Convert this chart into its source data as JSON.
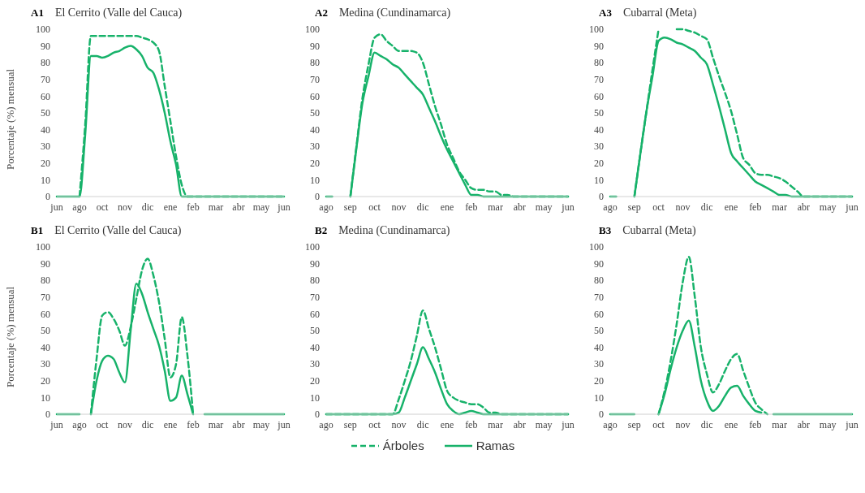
{
  "chart_data": [
    {
      "type": "line",
      "title": "El Cerrito (Valle del Cauca)",
      "annotations": [
        "A1"
      ],
      "ylabel": "Porcentaje (%) mensual",
      "categories": [
        "jun",
        null,
        null,
        null,
        "ago",
        null,
        null,
        null,
        "oct",
        null,
        null,
        null,
        "nov",
        null,
        null,
        null,
        "dic",
        null,
        null,
        null,
        "ene",
        null,
        null,
        null,
        "feb",
        null,
        null,
        null,
        "mar",
        null,
        null,
        null,
        "abr",
        null,
        null,
        null,
        "may",
        null,
        null,
        null,
        "jun"
      ],
      "ylim": [
        0,
        100
      ],
      "yticks": [
        0,
        10,
        20,
        30,
        40,
        50,
        60,
        70,
        80,
        90,
        100
      ],
      "grid": false,
      "legend": false,
      "series": [
        {
          "color": "#17b26a",
          "line_style": "dashed",
          "values": [
            null,
            null,
            null,
            null,
            0,
            43,
            96,
            96,
            96,
            96,
            96,
            96,
            96,
            96,
            96,
            95,
            94,
            92,
            87,
            66,
            45,
            24,
            7,
            0,
            0,
            0,
            0,
            0,
            0,
            0,
            0,
            0,
            0,
            0,
            0,
            0,
            0,
            0,
            0,
            0,
            0
          ]
        },
        {
          "color": "#17b26a",
          "line_style": "solid",
          "values": [
            0,
            0,
            0,
            0,
            0,
            37,
            84,
            84,
            83,
            84,
            86,
            87,
            89,
            90,
            88,
            84,
            77,
            74,
            64,
            50,
            33,
            19,
            0,
            0,
            0,
            0,
            0,
            0,
            0,
            0,
            0,
            0,
            0,
            0,
            0,
            0,
            0,
            0,
            0,
            0,
            0
          ]
        }
      ]
    },
    {
      "type": "line",
      "title": "Medina (Cundinamarca)",
      "annotations": [
        "A2"
      ],
      "categories": [
        "ago",
        null,
        null,
        null,
        "sep",
        null,
        null,
        null,
        "oct",
        null,
        null,
        null,
        "nov",
        null,
        null,
        null,
        "dic",
        null,
        null,
        null,
        "ene",
        null,
        null,
        null,
        "feb",
        null,
        null,
        null,
        "mar",
        null,
        null,
        null,
        "abr",
        null,
        null,
        null,
        "may",
        null,
        null,
        null,
        "jun"
      ],
      "ylim": [
        0,
        100
      ],
      "yticks": [
        0,
        10,
        20,
        30,
        40,
        50,
        60,
        70,
        80,
        90,
        100
      ],
      "grid": false,
      "legend": false,
      "series": [
        {
          "color": "#17b26a",
          "line_style": "dashed",
          "values": [
            null,
            null,
            null,
            null,
            0,
            30,
            59,
            79,
            95,
            97,
            93,
            90,
            87,
            87,
            87,
            86,
            80,
            67,
            54,
            43,
            31,
            23,
            15,
            10,
            5,
            4,
            4,
            3,
            3,
            1,
            1,
            0,
            0,
            0,
            0,
            0,
            0,
            0,
            0,
            0,
            0
          ]
        },
        {
          "color": "#17b26a",
          "line_style": "solid",
          "values": [
            0,
            0,
            null,
            null,
            0,
            29,
            56,
            72,
            86,
            84,
            82,
            79,
            77,
            73,
            69,
            65,
            61,
            53,
            45,
            36,
            28,
            21,
            14,
            7,
            1,
            1,
            0,
            0,
            0,
            0,
            0,
            0,
            0,
            0,
            0,
            0,
            0,
            0,
            0,
            0,
            0
          ]
        }
      ]
    },
    {
      "type": "line",
      "title": "Cubarral  (Meta)",
      "annotations": [
        "A3"
      ],
      "categories": [
        "ago",
        null,
        null,
        null,
        "sep",
        null,
        null,
        null,
        "oct",
        null,
        null,
        null,
        "nov",
        null,
        null,
        null,
        "dic",
        null,
        null,
        null,
        "ene",
        null,
        null,
        null,
        "feb",
        null,
        null,
        null,
        "mar",
        null,
        null,
        null,
        "abr",
        null,
        null,
        null,
        "may",
        null,
        null,
        null,
        "jun"
      ],
      "ylim": [
        0,
        100
      ],
      "yticks": [
        0,
        10,
        20,
        30,
        40,
        50,
        60,
        70,
        80,
        90,
        100
      ],
      "grid": false,
      "legend": false,
      "series": [
        {
          "color": "#17b26a",
          "line_style": "dashed",
          "values": [
            null,
            null,
            null,
            null,
            0,
            26,
            51,
            76,
            100,
            null,
            null,
            100,
            100,
            99,
            98,
            96,
            94,
            83,
            72,
            62,
            51,
            37,
            23,
            19,
            14,
            13,
            13,
            12,
            11,
            9,
            6,
            3,
            0,
            0,
            0,
            0,
            0,
            0,
            0,
            0,
            0
          ]
        },
        {
          "color": "#17b26a",
          "line_style": "solid",
          "values": [
            0,
            0,
            null,
            null,
            0,
            26,
            51,
            72,
            93,
            95,
            94,
            92,
            91,
            89,
            87,
            83,
            79,
            67,
            54,
            40,
            26,
            21,
            17,
            13,
            9,
            7,
            5,
            3,
            1,
            1,
            0,
            0,
            0,
            0,
            0,
            0,
            0,
            0,
            0,
            0,
            0
          ]
        }
      ]
    },
    {
      "type": "line",
      "title": "El Cerrito (Valle del Cauca)",
      "annotations": [
        "B1"
      ],
      "ylabel": "Porcentaje (%) mensual",
      "categories": [
        "jun",
        null,
        null,
        null,
        "ago",
        null,
        null,
        null,
        "oct",
        null,
        null,
        null,
        "nov",
        null,
        null,
        null,
        "dic",
        null,
        null,
        null,
        "ene",
        null,
        null,
        null,
        "feb",
        null,
        null,
        null,
        "mar",
        null,
        null,
        null,
        "abr",
        null,
        null,
        null,
        "may",
        null,
        null,
        null,
        "jun"
      ],
      "ylim": [
        0,
        100
      ],
      "yticks": [
        0,
        10,
        20,
        30,
        40,
        50,
        60,
        70,
        80,
        90,
        100
      ],
      "grid": false,
      "legend": false,
      "series": [
        {
          "color": "#17b26a",
          "line_style": "dashed",
          "values": [
            null,
            null,
            null,
            null,
            null,
            null,
            0,
            33,
            59,
            61,
            57,
            50,
            41,
            52,
            69,
            86,
            93,
            83,
            67,
            45,
            22,
            30,
            58,
            35,
            0,
            null,
            null,
            null,
            null,
            null,
            null,
            null,
            null,
            null,
            null,
            null,
            null,
            null,
            null,
            null,
            null
          ]
        },
        {
          "color": "#17b26a",
          "line_style": "solid",
          "values": [
            0,
            0,
            0,
            0,
            0,
            null,
            0,
            20,
            32,
            35,
            33,
            25,
            19,
            50,
            78,
            72,
            61,
            51,
            41,
            26,
            8,
            10,
            23,
            12,
            0,
            null,
            0,
            0,
            0,
            0,
            0,
            0,
            0,
            0,
            0,
            0,
            0,
            0,
            0,
            0,
            0
          ]
        }
      ]
    },
    {
      "type": "line",
      "title": "Medina (Cundinamarca)",
      "annotations": [
        "B2"
      ],
      "categories": [
        "ago",
        null,
        null,
        null,
        "sep",
        null,
        null,
        null,
        "oct",
        null,
        null,
        null,
        "nov",
        null,
        null,
        null,
        "dic",
        null,
        null,
        null,
        "ene",
        null,
        null,
        null,
        "feb",
        null,
        null,
        null,
        "mar",
        null,
        null,
        null,
        "abr",
        null,
        null,
        null,
        "may",
        null,
        null,
        null,
        "jun"
      ],
      "ylim": [
        0,
        100
      ],
      "yticks": [
        0,
        10,
        20,
        30,
        40,
        50,
        60,
        70,
        80,
        90,
        100
      ],
      "grid": false,
      "legend": "bottom",
      "series": [
        {
          "name": "Árboles",
          "color": "#17b26a",
          "line_style": "dashed",
          "values": [
            0,
            0,
            0,
            0,
            0,
            0,
            0,
            0,
            0,
            0,
            0,
            0,
            9,
            20,
            32,
            47,
            62,
            51,
            40,
            27,
            14,
            10,
            8,
            7,
            6,
            6,
            4,
            1,
            1,
            0,
            0,
            0,
            0,
            0,
            0,
            0,
            0,
            0,
            0,
            0,
            0
          ]
        },
        {
          "name": "Ramas",
          "color": "#17b26a",
          "line_style": "solid",
          "values": [
            0,
            0,
            0,
            0,
            0,
            0,
            0,
            0,
            0,
            0,
            0,
            0,
            1,
            10,
            20,
            30,
            40,
            33,
            25,
            15,
            6,
            2,
            0,
            1,
            2,
            1,
            0,
            0,
            0,
            0,
            0,
            0,
            0,
            0,
            0,
            0,
            0,
            0,
            0,
            0,
            0
          ]
        }
      ]
    },
    {
      "type": "line",
      "title": "Cubarral  (Meta)",
      "annotations": [
        "B3"
      ],
      "categories": [
        "ago",
        null,
        null,
        null,
        "sep",
        null,
        null,
        null,
        "oct",
        null,
        null,
        null,
        "nov",
        null,
        null,
        null,
        "dic",
        null,
        null,
        null,
        "ene",
        null,
        null,
        null,
        "feb",
        null,
        null,
        null,
        "mar",
        null,
        null,
        null,
        "abr",
        null,
        null,
        null,
        "may",
        null,
        null,
        null,
        "jun"
      ],
      "ylim": [
        0,
        100
      ],
      "yticks": [
        0,
        10,
        20,
        30,
        40,
        50,
        60,
        70,
        80,
        90,
        100
      ],
      "grid": false,
      "legend": false,
      "series": [
        {
          "color": "#17b26a",
          "line_style": "dashed",
          "values": [
            null,
            null,
            null,
            null,
            null,
            null,
            null,
            null,
            0,
            14,
            32,
            54,
            79,
            94,
            70,
            40,
            24,
            13,
            18,
            26,
            33,
            36,
            26,
            16,
            7,
            3,
            0,
            null,
            null,
            null,
            null,
            null,
            null,
            null,
            null,
            null,
            null,
            null,
            null,
            null,
            null
          ]
        },
        {
          "color": "#17b26a",
          "line_style": "solid",
          "values": [
            0,
            0,
            0,
            0,
            0,
            null,
            null,
            null,
            0,
            12,
            27,
            40,
            50,
            56,
            40,
            20,
            8,
            2,
            5,
            11,
            16,
            17,
            11,
            6,
            2,
            1,
            null,
            0,
            0,
            0,
            0,
            0,
            0,
            0,
            0,
            0,
            0,
            0,
            0,
            0,
            0
          ]
        }
      ]
    }
  ]
}
